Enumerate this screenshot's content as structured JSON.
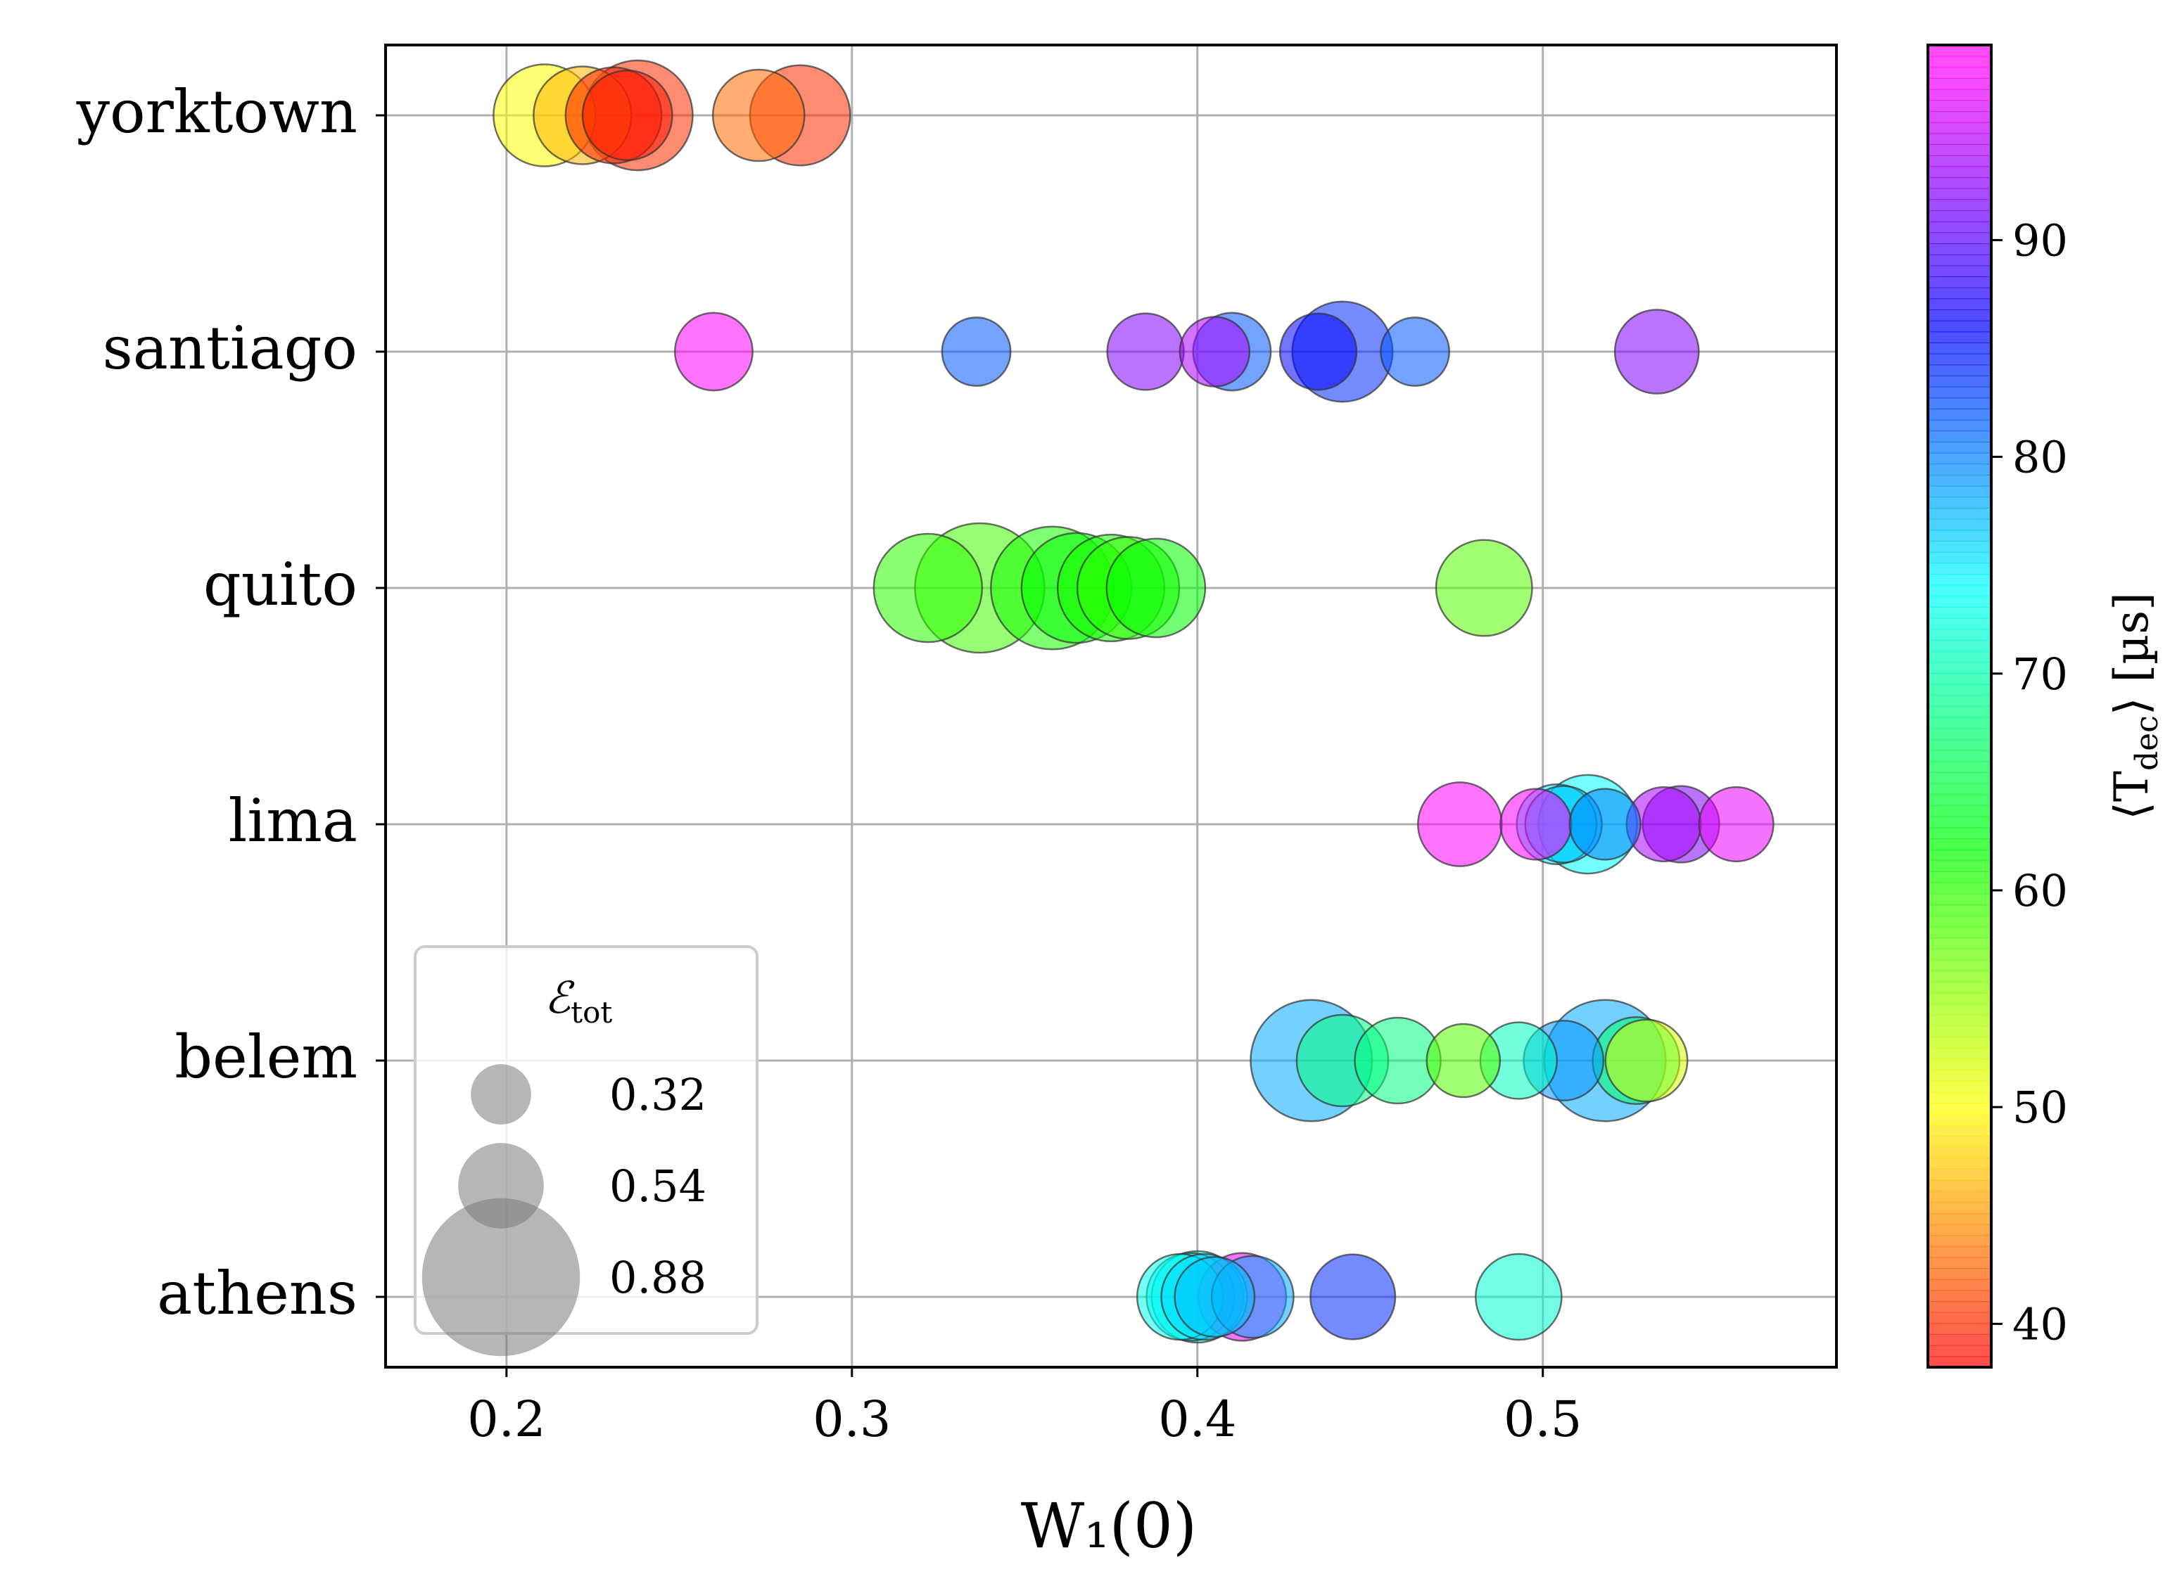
{
  "chart_data": {
    "type": "scatter",
    "title": "",
    "xlabel": "W₁(0)",
    "ylabel": "",
    "xlim": [
      0.165,
      0.585
    ],
    "xticks": [
      0.2,
      0.3,
      0.4,
      0.5
    ],
    "xtick_labels": [
      "0.2",
      "0.3",
      "0.4",
      "0.5"
    ],
    "categories": [
      "yorktown",
      "santiago",
      "quito",
      "lima",
      "belem",
      "athens"
    ],
    "grid": true,
    "colorbar": {
      "label": "⟨T_dec⟩ [µs]",
      "label_main": "⟨T",
      "label_sub": "dec",
      "label_end": "⟩ [µs]",
      "range": [
        38,
        99
      ],
      "ticks": [
        40,
        50,
        60,
        70,
        80,
        90
      ],
      "tick_labels": [
        "40",
        "50",
        "60",
        "70",
        "80",
        "90"
      ],
      "colormap": "gist_rainbow"
    },
    "size_legend": {
      "title": "ℰ",
      "title_sub": "tot",
      "title_full": "ℰ_tot",
      "placement": "lower-left",
      "entries": [
        {
          "value": 0.32,
          "label": "0.32"
        },
        {
          "value": 0.54,
          "label": "0.54"
        },
        {
          "value": 0.88,
          "label": "0.88"
        }
      ]
    },
    "series": [
      {
        "name": "yorktown",
        "points": [
          {
            "x": 0.211,
            "t": 50.0,
            "e": 0.62
          },
          {
            "x": 0.222,
            "t": 46.5,
            "e": 0.57
          },
          {
            "x": 0.231,
            "t": 39.5,
            "e": 0.55
          },
          {
            "x": 0.235,
            "t": 39.0,
            "e": 0.48
          },
          {
            "x": 0.238,
            "t": 40.0,
            "e": 0.72
          },
          {
            "x": 0.273,
            "t": 43.0,
            "e": 0.5
          },
          {
            "x": 0.285,
            "t": 40.0,
            "e": 0.6
          }
        ]
      },
      {
        "name": "santiago",
        "points": [
          {
            "x": 0.26,
            "t": 98.0,
            "e": 0.36
          },
          {
            "x": 0.336,
            "t": 82.0,
            "e": 0.28
          },
          {
            "x": 0.385,
            "t": 92.0,
            "e": 0.35
          },
          {
            "x": 0.405,
            "t": 94.0,
            "e": 0.29
          },
          {
            "x": 0.41,
            "t": 82.0,
            "e": 0.36
          },
          {
            "x": 0.435,
            "t": 86.0,
            "e": 0.35
          },
          {
            "x": 0.442,
            "t": 84.0,
            "e": 0.6
          },
          {
            "x": 0.463,
            "t": 82.0,
            "e": 0.28
          },
          {
            "x": 0.533,
            "t": 92.0,
            "e": 0.42
          }
        ]
      },
      {
        "name": "quito",
        "points": [
          {
            "x": 0.322,
            "t": 60.0,
            "e": 0.7
          },
          {
            "x": 0.337,
            "t": 59.0,
            "e": 1.0
          },
          {
            "x": 0.358,
            "t": 61.0,
            "e": 0.9
          },
          {
            "x": 0.365,
            "t": 62.0,
            "e": 0.72
          },
          {
            "x": 0.375,
            "t": 61.0,
            "e": 0.68
          },
          {
            "x": 0.38,
            "t": 60.0,
            "e": 0.62
          },
          {
            "x": 0.388,
            "t": 62.0,
            "e": 0.58
          },
          {
            "x": 0.483,
            "t": 58.0,
            "e": 0.55
          }
        ]
      },
      {
        "name": "lima",
        "points": [
          {
            "x": 0.476,
            "t": 98.0,
            "e": 0.42
          },
          {
            "x": 0.498,
            "t": 98.0,
            "e": 0.3
          },
          {
            "x": 0.504,
            "t": 75.0,
            "e": 0.38
          },
          {
            "x": 0.506,
            "t": 77.0,
            "e": 0.35
          },
          {
            "x": 0.513,
            "t": 74.0,
            "e": 0.58
          },
          {
            "x": 0.518,
            "t": 80.0,
            "e": 0.3
          },
          {
            "x": 0.535,
            "t": 94.0,
            "e": 0.33
          },
          {
            "x": 0.54,
            "t": 92.0,
            "e": 0.35
          },
          {
            "x": 0.556,
            "t": 97.0,
            "e": 0.33
          }
        ]
      },
      {
        "name": "belem",
        "points": [
          {
            "x": 0.433,
            "t": 78.0,
            "e": 0.88
          },
          {
            "x": 0.442,
            "t": 68.0,
            "e": 0.5
          },
          {
            "x": 0.458,
            "t": 68.0,
            "e": 0.44
          },
          {
            "x": 0.477,
            "t": 58.0,
            "e": 0.32
          },
          {
            "x": 0.493,
            "t": 71.0,
            "e": 0.35
          },
          {
            "x": 0.518,
            "t": 78.0,
            "e": 0.88
          },
          {
            "x": 0.506,
            "t": 79.0,
            "e": 0.38
          },
          {
            "x": 0.527,
            "t": 67.0,
            "e": 0.45
          },
          {
            "x": 0.53,
            "t": 52.0,
            "e": 0.4
          }
        ]
      },
      {
        "name": "athens",
        "points": [
          {
            "x": 0.395,
            "t": 73.0,
            "e": 0.44
          },
          {
            "x": 0.398,
            "t": 75.0,
            "e": 0.46
          },
          {
            "x": 0.4,
            "t": 74.0,
            "e": 0.5
          },
          {
            "x": 0.402,
            "t": 76.0,
            "e": 0.44
          },
          {
            "x": 0.405,
            "t": 77.0,
            "e": 0.38
          },
          {
            "x": 0.413,
            "t": 97.0,
            "e": 0.46
          },
          {
            "x": 0.416,
            "t": 78.0,
            "e": 0.4
          },
          {
            "x": 0.445,
            "t": 84.0,
            "e": 0.43
          },
          {
            "x": 0.493,
            "t": 72.0,
            "e": 0.44
          }
        ]
      }
    ]
  }
}
